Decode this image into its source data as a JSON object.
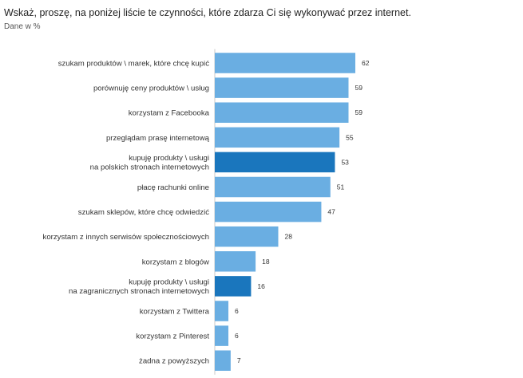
{
  "chart_data": {
    "type": "bar",
    "orientation": "horizontal",
    "title": "Wskaż, proszę, na poniżej liście te czynności, które zdarza Ci się wykonywać przez internet.",
    "subtitle": "Dane w %",
    "categories": [
      [
        "szukam produktów \\ marek, które chcę kupić"
      ],
      [
        "porównuję ceny produktów \\ usług"
      ],
      [
        "korzystam z Facebooka"
      ],
      [
        "przeglądam prasę internetową"
      ],
      [
        "kupuję produkty \\ usługi",
        "na polskich stronach internetowych"
      ],
      [
        "płacę rachunki online"
      ],
      [
        "szukam sklepów, które chcę odwiedzić"
      ],
      [
        "korzystam z innych serwisów społecznościowych"
      ],
      [
        "korzystam z blogów"
      ],
      [
        "kupuję produkty \\ usługi",
        "na zagranicznych stronach internetowych"
      ],
      [
        "korzystam z Twittera"
      ],
      [
        "korzystam z Pinterest"
      ],
      [
        "żadna z powyższych"
      ]
    ],
    "values": [
      62,
      59,
      59,
      55,
      53,
      51,
      47,
      28,
      18,
      16,
      6,
      6,
      7
    ],
    "highlighted": [
      false,
      false,
      false,
      false,
      true,
      false,
      false,
      false,
      false,
      true,
      false,
      false,
      false
    ],
    "xlim": [
      0,
      100
    ],
    "grid": false,
    "legend": "none",
    "colors": {
      "bar": "#6aaee2",
      "bar_highlight": "#1a76bd",
      "axis": "#c8c8c8"
    }
  }
}
